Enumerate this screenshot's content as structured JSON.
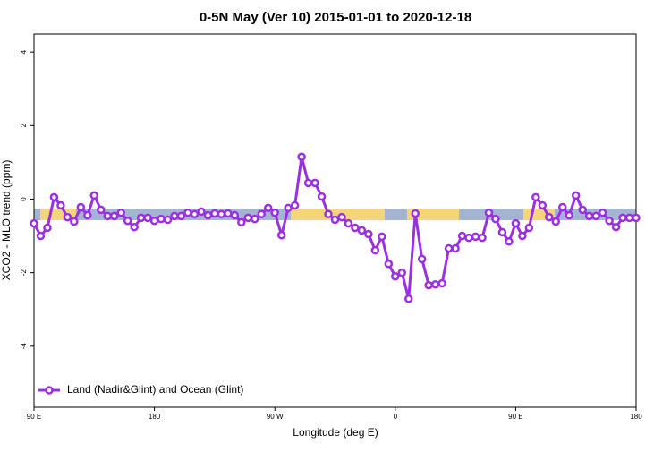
{
  "chart_data": {
    "type": "line",
    "title": "0-5N May (Ver 10)   2015-01-01 to 2020-12-18",
    "x_label": "Longitude (deg E)",
    "y_label": "XCO2 - MLO trend (ppm)",
    "x": [
      90,
      95,
      100,
      105,
      110,
      115,
      120,
      125,
      130,
      135,
      140,
      145,
      150,
      155,
      160,
      165,
      170,
      175,
      180,
      185,
      190,
      195,
      200,
      205,
      210,
      215,
      220,
      225,
      230,
      235,
      240,
      245,
      250,
      255,
      260,
      265,
      270,
      275,
      280,
      285,
      290,
      295,
      300,
      305,
      310,
      315,
      320,
      325,
      330,
      335,
      340,
      345,
      350,
      355,
      360,
      365,
      370,
      375,
      380,
      385,
      390,
      395,
      400,
      405,
      410,
      415,
      420,
      425,
      430,
      435,
      440,
      445,
      450,
      455,
      460,
      465,
      470,
      475,
      480,
      485,
      490,
      495,
      500,
      505,
      510,
      515,
      520,
      525,
      530,
      535,
      540
    ],
    "series": [
      {
        "name": "Land (Nadir&Glint) and Ocean (Glint)",
        "color": "#9b30e0",
        "values": [
          -0.66,
          -1.0,
          -0.78,
          0.05,
          -0.17,
          -0.49,
          -0.61,
          -0.22,
          -0.44,
          0.1,
          -0.29,
          -0.46,
          -0.46,
          -0.37,
          -0.59,
          -0.76,
          -0.51,
          -0.51,
          -0.59,
          -0.54,
          -0.56,
          -0.46,
          -0.46,
          -0.37,
          -0.41,
          -0.34,
          -0.44,
          -0.39,
          -0.41,
          -0.39,
          -0.44,
          -0.63,
          -0.51,
          -0.54,
          -0.41,
          -0.24,
          -0.37,
          -0.98,
          -0.24,
          -0.17,
          1.15,
          0.44,
          0.44,
          0.07,
          -0.41,
          -0.56,
          -0.49,
          -0.66,
          -0.78,
          -0.85,
          -0.95,
          -1.39,
          -1.02,
          -1.76,
          -2.1,
          -2.0,
          -2.71,
          -0.39,
          -1.63,
          -2.34,
          -2.32,
          -2.29,
          -1.34,
          -1.34,
          -1.0,
          -1.05,
          -1.02,
          -1.05,
          -0.37,
          -0.54,
          -0.9,
          -1.15,
          -0.66,
          -1.0,
          -0.78,
          0.05,
          -0.17,
          -0.49,
          -0.61,
          -0.22,
          -0.44,
          0.1,
          -0.29,
          -0.46,
          -0.46,
          -0.37,
          -0.59,
          -0.76,
          -0.51,
          -0.51,
          -0.51
        ]
      }
    ],
    "xlim": [
      90,
      540
    ],
    "xticks": [
      {
        "value": 90,
        "label": "90 E"
      },
      180,
      {
        "value": 270,
        "label": "90 W"
      },
      {
        "value": 360,
        "label": "0"
      },
      {
        "value": 450,
        "label": "90 E"
      },
      {
        "value": 540,
        "label": "180"
      }
    ],
    "ylim": [
      -5.66,
      4.49
    ],
    "yticks": [
      -4,
      -2,
      0,
      2,
      4
    ],
    "legend": "bottom-left"
  }
}
